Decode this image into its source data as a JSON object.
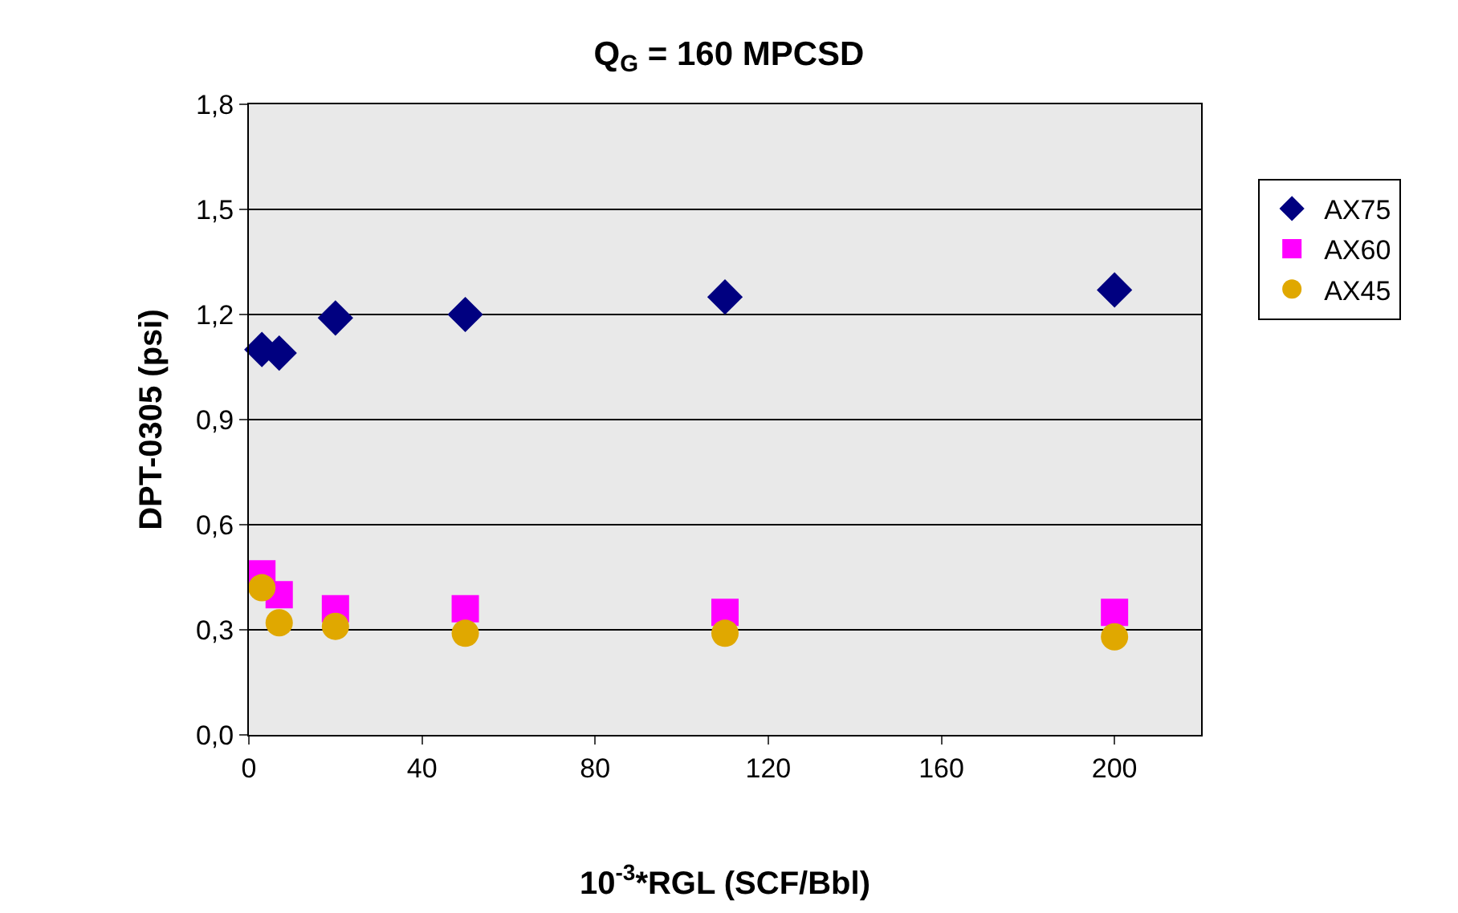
{
  "chart_data": {
    "type": "scatter",
    "title": "Q$_{G}$ = 160 MPCSD",
    "xlabel": "10$^{-3}$*RGL (SCF/Bbl)",
    "ylabel": "DPT-0305 (psi)",
    "x": [
      3,
      7,
      20,
      50,
      110,
      200
    ],
    "series": [
      {
        "name": "AX75",
        "color": "#000080",
        "marker": "diamond",
        "values": [
          1.1,
          1.09,
          1.19,
          1.2,
          1.25,
          1.27
        ]
      },
      {
        "name": "AX60",
        "color": "#ff00ff",
        "marker": "square",
        "values": [
          0.46,
          0.4,
          0.36,
          0.36,
          0.35,
          0.35
        ]
      },
      {
        "name": "AX45",
        "color": "#e0a800",
        "marker": "circle",
        "values": [
          0.42,
          0.32,
          0.31,
          0.29,
          0.29,
          0.28
        ]
      }
    ],
    "xlim": [
      0,
      220
    ],
    "xticks": [
      0,
      40,
      80,
      120,
      160,
      200
    ],
    "ylim": [
      0,
      1.8
    ],
    "yticks": [
      {
        "value": 0,
        "label": "0,0"
      },
      {
        "value": 0.3,
        "label": "0,3"
      },
      {
        "value": 0.6,
        "label": "0,6"
      },
      {
        "value": 0.9,
        "label": "0,9"
      },
      {
        "value": 1.2,
        "label": "1,2"
      },
      {
        "value": 1.5,
        "label": "1,5"
      },
      {
        "value": 1.8,
        "label": "1,8"
      }
    ],
    "grid": "y",
    "legend": "right"
  }
}
